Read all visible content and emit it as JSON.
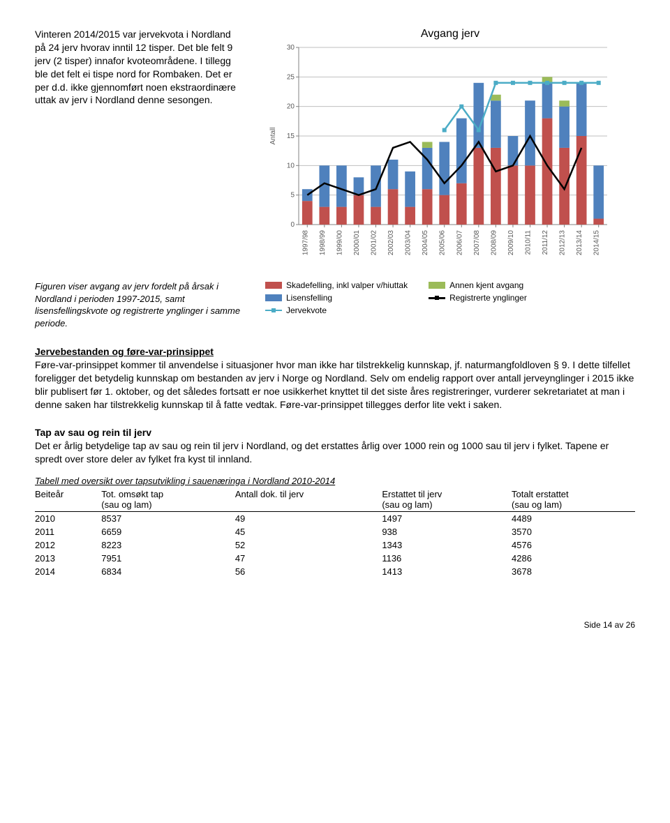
{
  "intro": "Vinteren 2014/2015 var jervekvota i Nordland på 24 jerv hvorav inntil 12 tisper. Det ble felt 9 jerv (2 tisper) innafor kvoteområdene. I tillegg ble det felt ei tispe nord for Rombaken. Det er per d.d. ikke gjennomført noen ekstraordinære uttak av jerv i Nordland denne sesongen.",
  "chart": {
    "title": "Avgang jerv",
    "ylabel": "Antall",
    "ylim": [
      0,
      30
    ],
    "ytick_step": 5,
    "categories": [
      "1997/98",
      "1998/99",
      "1999/00",
      "2000/01",
      "2001/02",
      "2002/03",
      "2003/04",
      "2004/05",
      "2005/06",
      "2006/07",
      "2007/08",
      "2008/09",
      "2009/10",
      "2010/11",
      "2011/12",
      "2012/13",
      "2013/14",
      "2014/15"
    ],
    "series": [
      {
        "name": "Skadefelling, inkl valper v/hiuttak",
        "color": "#c0504d",
        "values": [
          4,
          3,
          3,
          5,
          3,
          6,
          3,
          6,
          5,
          7,
          13,
          13,
          10,
          10,
          18,
          13,
          15,
          1
        ]
      },
      {
        "name": "Lisensfelling",
        "color": "#4f81bd",
        "values": [
          2,
          7,
          7,
          3,
          7,
          5,
          6,
          7,
          9,
          11,
          11,
          8,
          5,
          11,
          6,
          7,
          9,
          9
        ]
      },
      {
        "name": "Annen kjent avgang",
        "color": "#9bbb59",
        "values": [
          0,
          0,
          0,
          0,
          0,
          0,
          0,
          1,
          0,
          0,
          0,
          1,
          0,
          0,
          1,
          1,
          0,
          0
        ]
      }
    ],
    "lines": [
      {
        "name": "Jervekvote",
        "color": "#4bacc6",
        "marker": true,
        "values": [
          null,
          null,
          null,
          null,
          null,
          null,
          null,
          null,
          16,
          20,
          16,
          24,
          24,
          24,
          24,
          24,
          24,
          24
        ]
      },
      {
        "name": "Registrerte ynglinger",
        "color": "#000000",
        "marker": false,
        "values": [
          5,
          7,
          6,
          5,
          6,
          13,
          14,
          11,
          7,
          10,
          14,
          9,
          10,
          15,
          10,
          6,
          13,
          null
        ]
      }
    ],
    "background_color": "#ffffff",
    "grid_color": "#d9d9d9",
    "bar_width": 0.6,
    "label_fontsize": 10
  },
  "legend_items": [
    {
      "swatch": "#c0504d",
      "type": "box",
      "label": "Skadefelling, inkl valper v/hiuttak"
    },
    {
      "swatch": "#9bbb59",
      "type": "box",
      "label": "Annen kjent avgang"
    },
    {
      "swatch": "#4f81bd",
      "type": "box",
      "label": "Lisensfelling"
    },
    {
      "swatch": "#000000",
      "type": "line",
      "label": "Registrerte ynglinger"
    },
    {
      "swatch": "#4bacc6",
      "type": "linem",
      "label": "Jervekvote"
    }
  ],
  "caption": "Figuren viser avgang av jerv fordelt på årsak i Nordland i perioden 1997-2015, samt lisensfellingskvote og registrerte ynglinger i samme periode.",
  "section1_title": "Jervebestanden og føre-var-prinsippet",
  "section1_body": "Føre-var-prinsippet kommer til anvendelse i situasjoner hvor man ikke har tilstrekkelig kunnskap, jf. naturmangfoldloven § 9. I dette tilfellet foreligger det betydelig kunnskap om bestanden av jerv i Norge og Nordland. Selv om endelig rapport over antall jerveynglinger i 2015 ikke blir publisert før 1. oktober, og det således fortsatt er noe usikkerhet knyttet til det siste åres registreringer, vurderer sekretariatet at man i denne saken har tilstrekkelig kunnskap til å fatte vedtak. Føre-var-prinsippet tillegges derfor lite vekt i saken.",
  "section2_title": "Tap av sau og rein til jerv",
  "section2_body": "Det er årlig betydelige tap av sau og rein til jerv i Nordland, og det erstattes årlig over 1000 rein og 1000 sau til jerv i fylket. Tapene er spredt over store deler av fylket fra kyst til innland.",
  "table_caption": "Tabell med oversikt over tapsutvikling i sauenæringa i Nordland 2010-2014",
  "table": {
    "columns": [
      "Beiteår",
      "Tot. omsøkt tap (sau og lam)",
      "Antall dok. til jerv",
      "Erstattet til jerv (sau og lam)",
      "Totalt erstattet (sau og lam)"
    ],
    "rows": [
      [
        "2010",
        "8537",
        "49",
        "1497",
        "4489"
      ],
      [
        "2011",
        "6659",
        "45",
        "938",
        "3570"
      ],
      [
        "2012",
        "8223",
        "52",
        "1343",
        "4576"
      ],
      [
        "2013",
        "7951",
        "47",
        "1136",
        "4286"
      ],
      [
        "2014",
        "6834",
        "56",
        "1413",
        "3678"
      ]
    ]
  },
  "footer": "Side 14 av 26"
}
